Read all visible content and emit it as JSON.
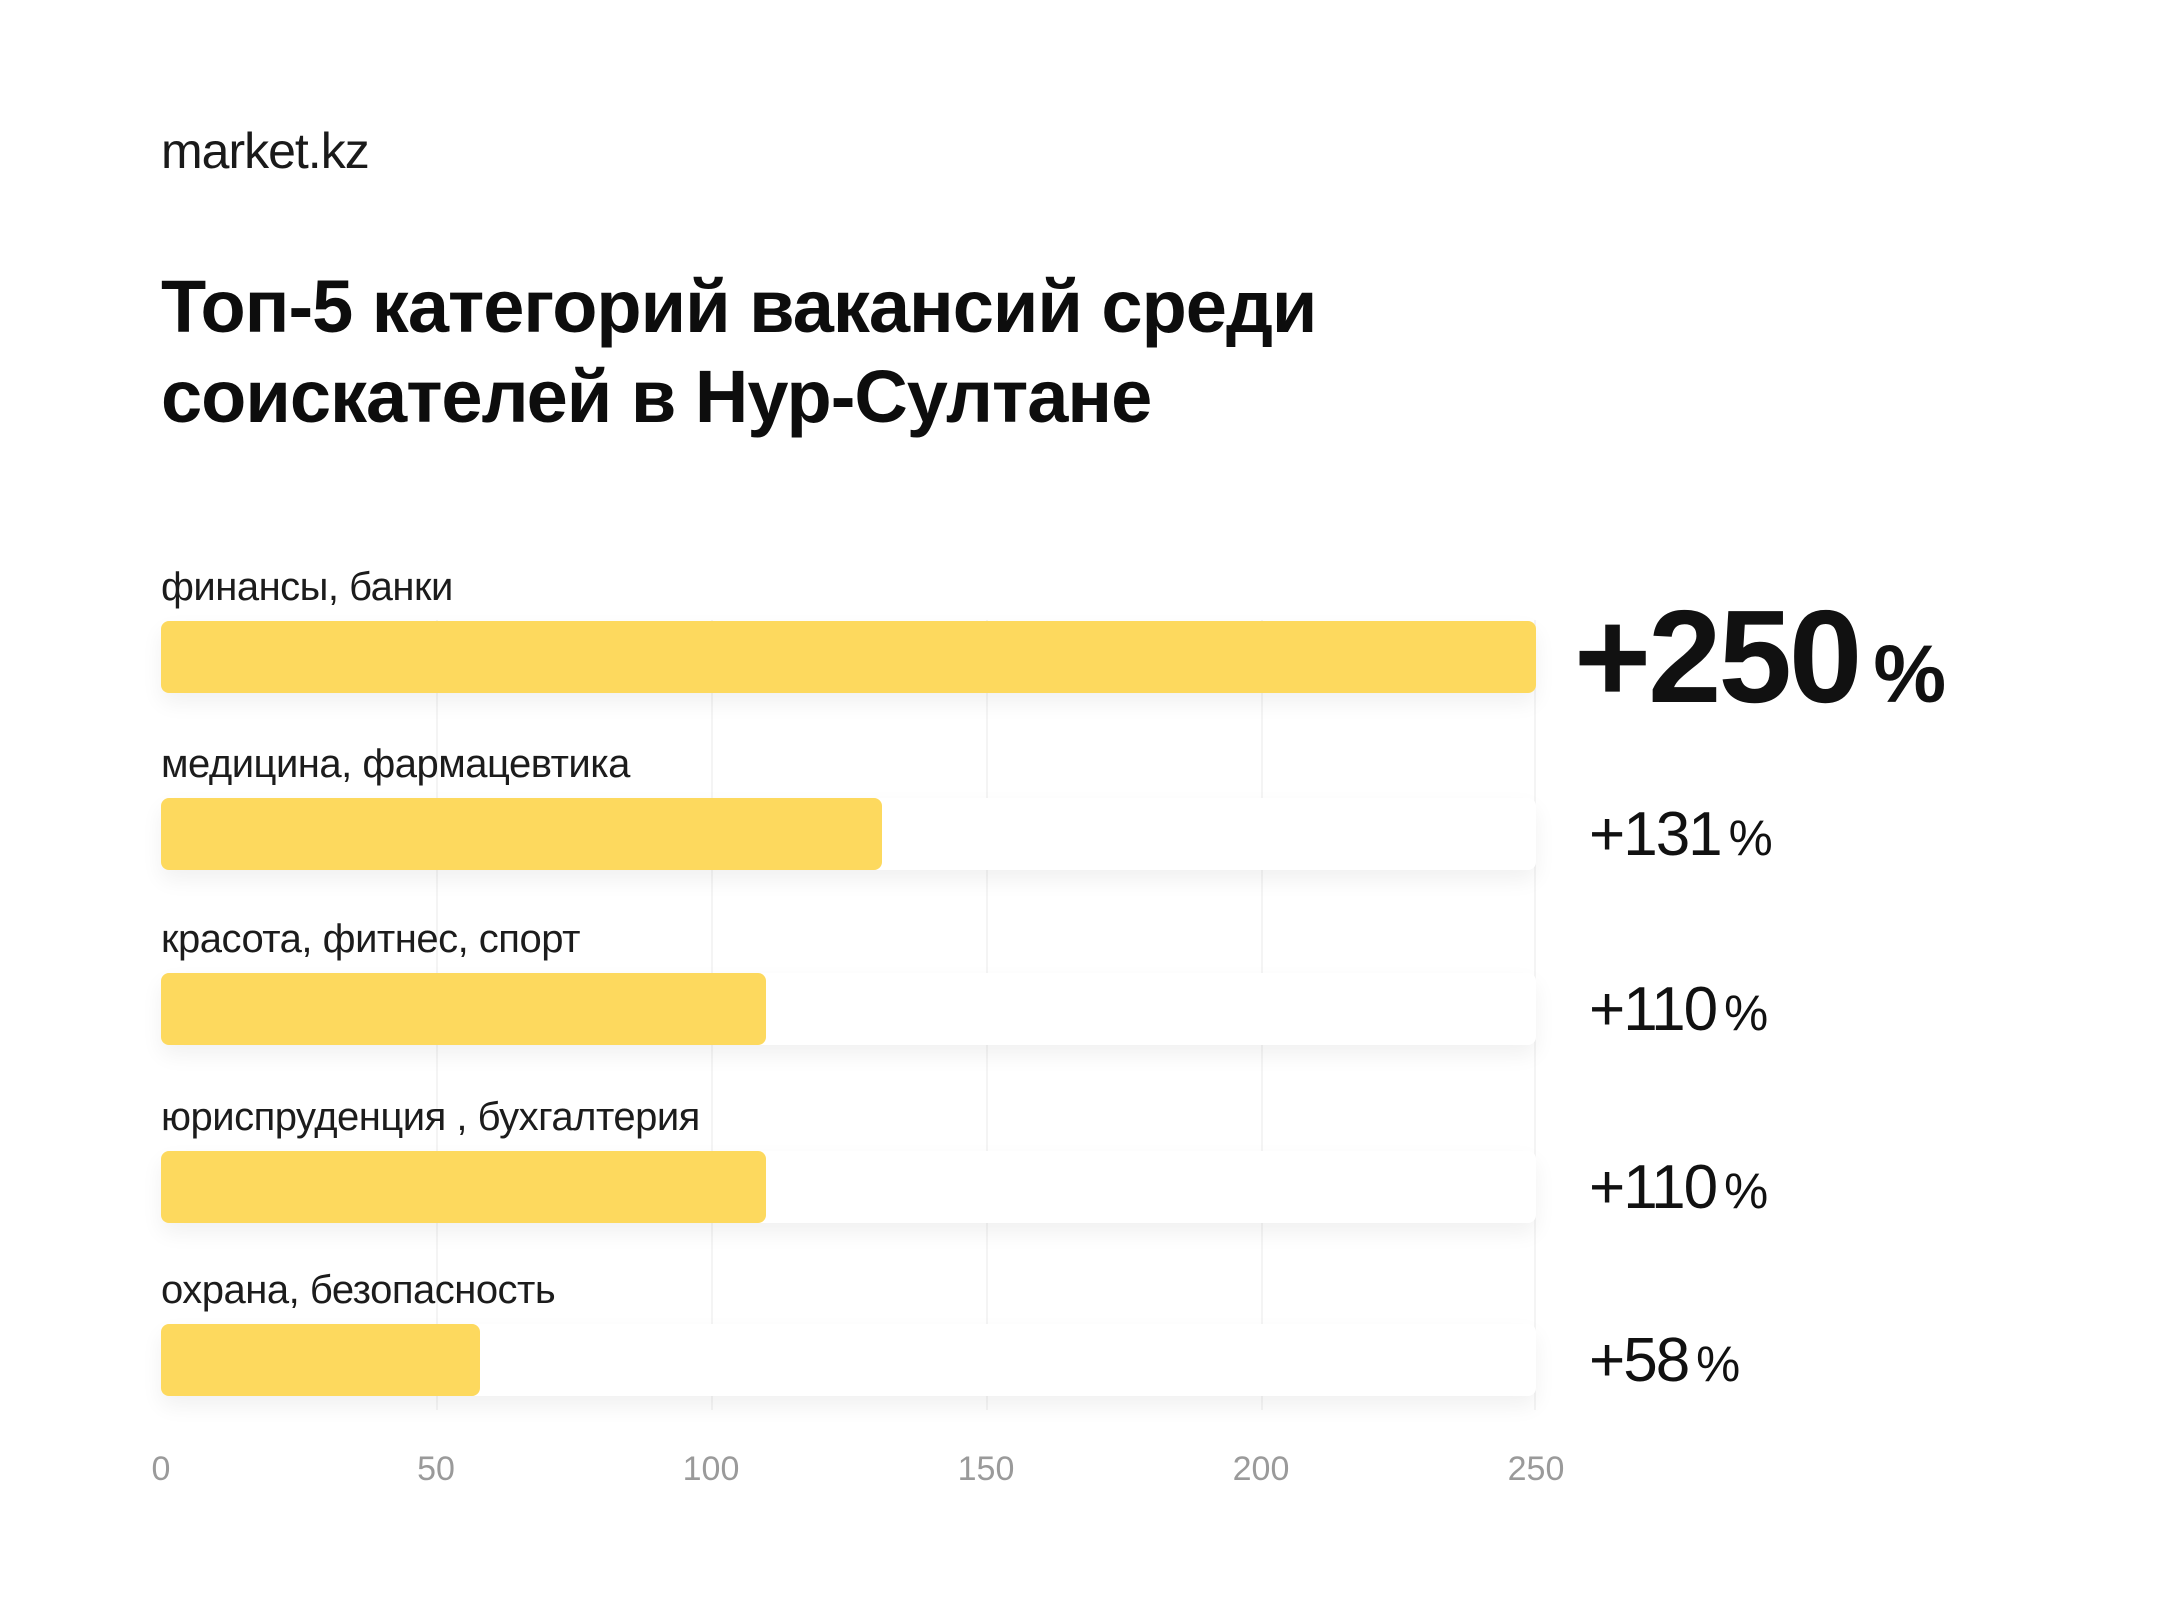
{
  "brand": "market.kz",
  "title": {
    "line1": "Топ-5 категорий вакансий среди",
    "line2": "соискателей в Нур-Султане"
  },
  "colors": {
    "bar": "#FDD95E",
    "track": "#FFFFFF",
    "tick_text": "#9A9A9A"
  },
  "rows": [
    {
      "label": "финансы, банки",
      "value": 250,
      "value_text": "+250",
      "pct": "%"
    },
    {
      "label": "медицина, фармацевтика",
      "value": 131,
      "value_text": "+131",
      "pct": "%"
    },
    {
      "label": "красота, фитнес, спорт",
      "value": 110,
      "value_text": "+110",
      "pct": "%"
    },
    {
      "label": "юриспруденция , бухгалтерия",
      "value": 110,
      "value_text": "+110",
      "pct": "%"
    },
    {
      "label": "охрана, безопасность",
      "value": 58,
      "value_text": "+58",
      "pct": "%"
    }
  ],
  "axis": {
    "ticks": [
      "0",
      "50",
      "100",
      "150",
      "200",
      "250"
    ]
  },
  "chart_data": {
    "type": "bar",
    "orientation": "horizontal",
    "title": "Топ-5 категорий вакансий среди соискателей в Нур-Султане",
    "categories": [
      "финансы, банки",
      "медицина, фармацевтика",
      "красота, фитнес, спорт",
      "юриспруденция , бухгалтерия",
      "охрана, безопасность"
    ],
    "values": [
      250,
      131,
      110,
      110,
      58
    ],
    "value_labels": [
      "+250 %",
      "+131 %",
      "+110 %",
      "+110 %",
      "+58 %"
    ],
    "xlabel": "",
    "ylabel": "",
    "xlim": [
      0,
      250
    ],
    "xticks": [
      0,
      50,
      100,
      150,
      200,
      250
    ],
    "grid": true,
    "legend": null,
    "source": "market.kz"
  }
}
